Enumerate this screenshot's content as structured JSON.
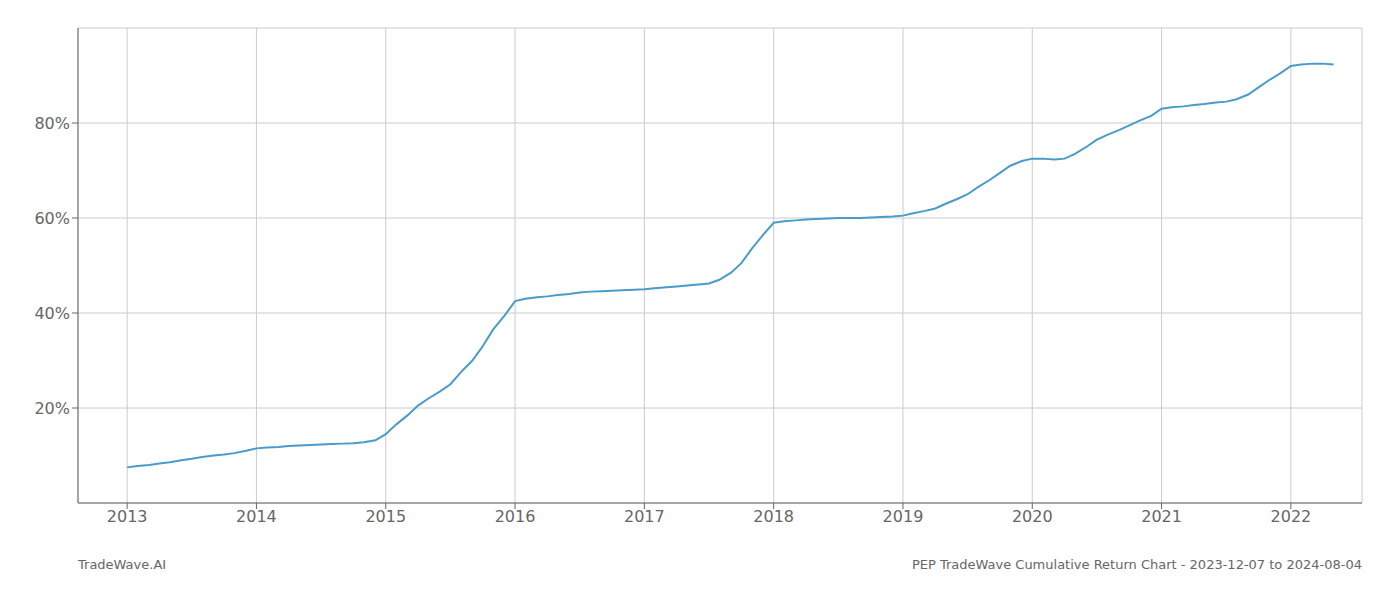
{
  "chart_data": {
    "type": "line",
    "x": [
      2013.0,
      2013.08,
      2013.17,
      2013.25,
      2013.33,
      2013.42,
      2013.5,
      2013.58,
      2013.67,
      2013.75,
      2013.83,
      2013.92,
      2014.0,
      2014.08,
      2014.17,
      2014.25,
      2014.33,
      2014.42,
      2014.5,
      2014.58,
      2014.67,
      2014.75,
      2014.83,
      2014.92,
      2015.0,
      2015.08,
      2015.17,
      2015.25,
      2015.33,
      2015.42,
      2015.5,
      2015.58,
      2015.67,
      2015.75,
      2015.83,
      2015.92,
      2016.0,
      2016.08,
      2016.17,
      2016.25,
      2016.33,
      2016.42,
      2016.5,
      2016.58,
      2016.67,
      2016.75,
      2016.83,
      2016.92,
      2017.0,
      2017.08,
      2017.17,
      2017.25,
      2017.33,
      2017.42,
      2017.5,
      2017.58,
      2017.67,
      2017.75,
      2017.83,
      2017.92,
      2018.0,
      2018.08,
      2018.17,
      2018.25,
      2018.33,
      2018.42,
      2018.5,
      2018.58,
      2018.67,
      2018.75,
      2018.83,
      2018.92,
      2019.0,
      2019.08,
      2019.17,
      2019.25,
      2019.33,
      2019.42,
      2019.5,
      2019.58,
      2019.67,
      2019.75,
      2019.83,
      2019.92,
      2020.0,
      2020.08,
      2020.17,
      2020.25,
      2020.33,
      2020.42,
      2020.5,
      2020.58,
      2020.67,
      2020.75,
      2020.83,
      2020.92,
      2021.0,
      2021.08,
      2021.17,
      2021.25,
      2021.33,
      2021.42,
      2021.5,
      2021.58,
      2021.67,
      2021.75,
      2021.83,
      2021.92,
      2022.0,
      2022.08,
      2022.17,
      2022.25,
      2022.33
    ],
    "values": [
      7.5,
      7.8,
      8.0,
      8.3,
      8.6,
      9.0,
      9.3,
      9.7,
      10.0,
      10.2,
      10.5,
      11.0,
      11.5,
      11.7,
      11.8,
      12.0,
      12.1,
      12.2,
      12.3,
      12.4,
      12.5,
      12.6,
      12.8,
      13.2,
      14.5,
      16.5,
      18.5,
      20.5,
      22.0,
      23.5,
      25.0,
      27.5,
      30.0,
      33.0,
      36.5,
      39.5,
      42.5,
      43.0,
      43.3,
      43.5,
      43.8,
      44.0,
      44.3,
      44.5,
      44.6,
      44.7,
      44.8,
      44.9,
      45.0,
      45.2,
      45.4,
      45.6,
      45.8,
      46.0,
      46.2,
      47.0,
      48.5,
      50.5,
      53.5,
      56.5,
      59.0,
      59.3,
      59.5,
      59.7,
      59.8,
      59.9,
      60.0,
      60.0,
      60.0,
      60.1,
      60.2,
      60.3,
      60.5,
      61.0,
      61.5,
      62.0,
      63.0,
      64.0,
      65.0,
      66.5,
      68.0,
      69.5,
      71.0,
      72.0,
      72.5,
      72.5,
      72.3,
      72.5,
      73.5,
      75.0,
      76.5,
      77.5,
      78.5,
      79.5,
      80.5,
      81.5,
      83.0,
      83.3,
      83.5,
      83.8,
      84.0,
      84.3,
      84.5,
      85.0,
      86.0,
      87.5,
      89.0,
      90.5,
      92.0,
      92.3,
      92.5,
      92.5,
      92.3
    ],
    "color": "#4a9bc9",
    "xlim": [
      2012.62,
      2022.55
    ],
    "xticks": [
      2013,
      2014,
      2015,
      2016,
      2017,
      2018,
      2019,
      2020,
      2021,
      2022
    ],
    "ylim": [
      0,
      100
    ],
    "yticks": [
      {
        "value": 20,
        "label": "20%"
      },
      {
        "value": 40,
        "label": "40%"
      },
      {
        "value": 60,
        "label": "60%"
      },
      {
        "value": 80,
        "label": "80%"
      }
    ],
    "grid": true,
    "annotations": [
      "TradeWave.AI",
      "PEP TradeWave Cumulative Return Chart - 2023-12-07 to 2024-08-04"
    ]
  }
}
